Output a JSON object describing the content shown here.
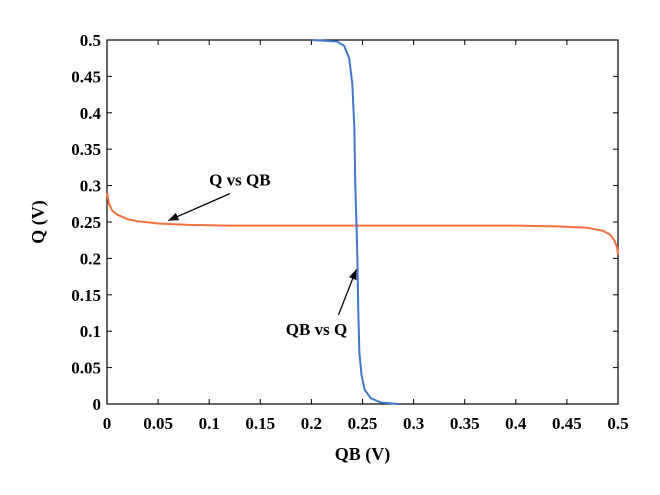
{
  "chart_data": {
    "type": "line",
    "title": "",
    "xlabel": "QB (V)",
    "ylabel": "Q (V)",
    "xlim": [
      0,
      0.5
    ],
    "ylim": [
      0,
      0.5
    ],
    "xticks": [
      "0",
      "0.05",
      "0.1",
      "0.15",
      "0.2",
      "0.25",
      "0.3",
      "0.35",
      "0.4",
      "0.45",
      "0.5"
    ],
    "yticks": [
      "0",
      "0.05",
      "0.1",
      "0.15",
      "0.2",
      "0.25",
      "0.3",
      "0.35",
      "0.4",
      "0.45",
      "0.5"
    ],
    "grid": false,
    "series": [
      {
        "name": "Q vs QB",
        "color": "#f2703c",
        "points": [
          [
            0.0,
            0.29
          ],
          [
            0.002,
            0.275
          ],
          [
            0.005,
            0.266
          ],
          [
            0.01,
            0.26
          ],
          [
            0.02,
            0.254
          ],
          [
            0.03,
            0.251
          ],
          [
            0.05,
            0.248
          ],
          [
            0.08,
            0.246
          ],
          [
            0.12,
            0.245
          ],
          [
            0.2,
            0.245
          ],
          [
            0.3,
            0.245
          ],
          [
            0.4,
            0.245
          ],
          [
            0.44,
            0.244
          ],
          [
            0.47,
            0.242
          ],
          [
            0.485,
            0.238
          ],
          [
            0.492,
            0.233
          ],
          [
            0.496,
            0.226
          ],
          [
            0.499,
            0.216
          ],
          [
            0.5,
            0.205
          ]
        ]
      },
      {
        "name": "QB vs Q",
        "color": "#3f78c9",
        "points": [
          [
            0.2,
            0.5
          ],
          [
            0.225,
            0.498
          ],
          [
            0.232,
            0.492
          ],
          [
            0.237,
            0.475
          ],
          [
            0.24,
            0.44
          ],
          [
            0.242,
            0.38
          ],
          [
            0.243,
            0.3
          ],
          [
            0.244,
            0.25
          ],
          [
            0.245,
            0.2
          ],
          [
            0.246,
            0.12
          ],
          [
            0.247,
            0.07
          ],
          [
            0.249,
            0.04
          ],
          [
            0.252,
            0.02
          ],
          [
            0.258,
            0.008
          ],
          [
            0.268,
            0.002
          ],
          [
            0.285,
            0.0
          ]
        ]
      }
    ],
    "annotations": [
      {
        "text": "Q vs QB",
        "x": 0.13,
        "y": 0.3,
        "arrow_to": [
          0.06,
          0.252
        ]
      },
      {
        "text": "QB vs Q",
        "x": 0.205,
        "y": 0.095,
        "arrow_to": [
          0.244,
          0.185
        ]
      }
    ]
  }
}
